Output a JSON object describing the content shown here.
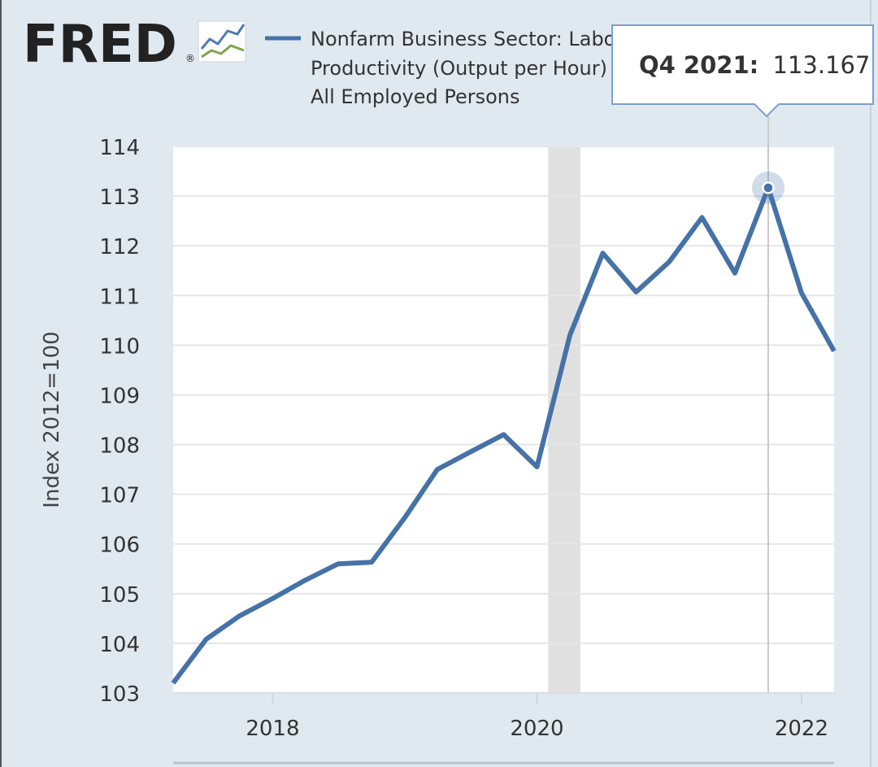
{
  "logo": {
    "text": "FRED",
    "registered": "®",
    "icon": "line-graph-icon"
  },
  "legend": {
    "lines": [
      "Nonfarm Business Sector: Labor",
      "Productivity (Output per Hour) fo",
      "All Employed Persons"
    ],
    "color": "#4572a7"
  },
  "tooltip": {
    "label": "Q4 2021:",
    "value": "113.167"
  },
  "chart_data": {
    "type": "line",
    "ylabel": "Index 2012=100",
    "ylim": [
      103,
      114
    ],
    "xlim": [
      "2017-04-01",
      "2022-04-01"
    ],
    "yticks": [
      "103",
      "104",
      "105",
      "106",
      "107",
      "108",
      "109",
      "110",
      "111",
      "112",
      "113",
      "114"
    ],
    "xticks": [
      {
        "date": "2018-01-01",
        "label": "2018"
      },
      {
        "date": "2020-01-01",
        "label": "2020"
      },
      {
        "date": "2022-01-01",
        "label": "2022"
      }
    ],
    "recession": {
      "start": "2020-02-01",
      "end": "2020-04-30"
    },
    "highlight": {
      "date": "2021-10-01",
      "value": 113.167
    },
    "grid": true,
    "series": [
      {
        "color": "#4572a7",
        "x": [
          "2017-04-01",
          "2017-07-01",
          "2017-10-01",
          "2018-01-01",
          "2018-04-01",
          "2018-07-01",
          "2018-10-01",
          "2019-01-01",
          "2019-04-01",
          "2019-07-01",
          "2019-10-01",
          "2020-01-01",
          "2020-04-01",
          "2020-07-01",
          "2020-10-01",
          "2021-01-01",
          "2021-04-01",
          "2021-07-01",
          "2021-10-01",
          "2022-01-01",
          "2022-04-01"
        ],
        "y": [
          103.2,
          104.08,
          104.55,
          104.9,
          105.27,
          105.6,
          105.63,
          106.53,
          107.5,
          107.85,
          108.2,
          107.55,
          110.2,
          111.85,
          111.07,
          111.68,
          112.57,
          111.45,
          113.167,
          111.05,
          109.88
        ]
      }
    ]
  }
}
